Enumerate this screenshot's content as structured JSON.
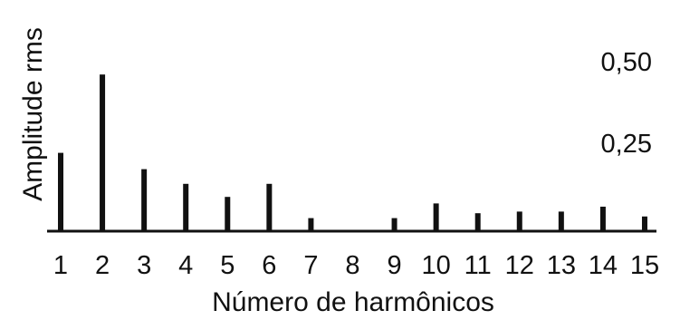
{
  "colors": {
    "bar": "#111111",
    "axis": "#111111",
    "background": "#ffffff"
  },
  "chart_data": {
    "type": "bar",
    "xlabel": "Número de harmônicos",
    "ylabel": "Amplitude rms",
    "categories": [
      "1",
      "2",
      "3",
      "4",
      "5",
      "6",
      "7",
      "8",
      "9",
      "10",
      "11",
      "12",
      "13",
      "14",
      "15"
    ],
    "values": [
      0.24,
      0.48,
      0.19,
      0.145,
      0.105,
      0.145,
      0.04,
      0.0,
      0.04,
      0.085,
      0.055,
      0.06,
      0.06,
      0.075,
      0.045
    ],
    "y_ticks": [
      {
        "value": 0.5,
        "label": "0,50"
      },
      {
        "value": 0.25,
        "label": "0,25"
      }
    ],
    "ylim": [
      0,
      0.5
    ],
    "grid": false,
    "legend": "none"
  }
}
